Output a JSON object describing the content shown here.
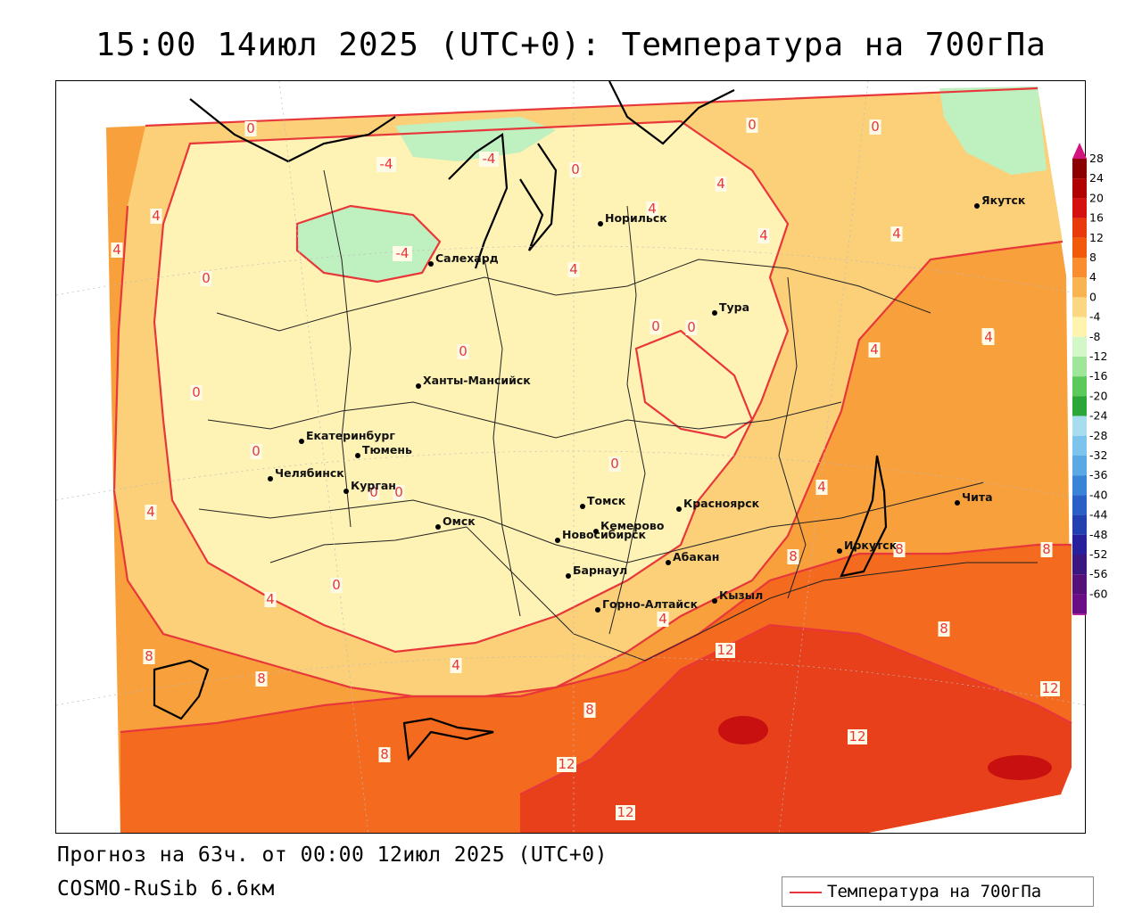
{
  "title": "15:00 14июл 2025 (UTC+0): Температура на 700гПа",
  "footer": {
    "forecast": "Прогноз на 63ч. от 00:00 12июл 2025 (UTC+0)",
    "model": "COSMO-RuSib 6.6км"
  },
  "legend": {
    "label": "Температура на 700гПа",
    "line_color": "#e8373a"
  },
  "colorbar": {
    "ticks": [
      "28",
      "24",
      "20",
      "16",
      "12",
      "8",
      "4",
      "0",
      "-4",
      "-8",
      "-12",
      "-16",
      "-20",
      "-24",
      "-28",
      "-32",
      "-36",
      "-40",
      "-44",
      "-48",
      "-52",
      "-56",
      "-60"
    ],
    "colors": [
      "#8b0000",
      "#b00000",
      "#d41010",
      "#e83a0a",
      "#f05a0a",
      "#f98d30",
      "#f8b450",
      "#fbd782",
      "#fff3b0",
      "#d4f7c8",
      "#9fe69a",
      "#5cc95c",
      "#2aa63a",
      "#a8dcef",
      "#7cc4ec",
      "#5aa8e4",
      "#3a84d8",
      "#2a5fc8",
      "#2340b0",
      "#281f9a",
      "#3a1680",
      "#55107a",
      "#6a0e86"
    ],
    "top_color": "#d4147e",
    "bottom_color": "#c31aa8"
  },
  "map": {
    "fills": {
      "very_warm": "#e8401a",
      "warm_12": "#f46a1e",
      "warm_8": "#f8a03c",
      "warm_4": "#fbd079",
      "mild_0": "#fff2b5",
      "cool": "#bff0c0",
      "hottest": "#c81010"
    },
    "isotherm_color": "#e8373a",
    "cities": [
      {
        "name": "Норильск"
      },
      {
        "name": "Якутск"
      },
      {
        "name": "Салехард"
      },
      {
        "name": "Тура"
      },
      {
        "name": "Ханты-Мансийск"
      },
      {
        "name": "Екатеринбург"
      },
      {
        "name": "Тюмень"
      },
      {
        "name": "Челябинск"
      },
      {
        "name": "Курган"
      },
      {
        "name": "Омск"
      },
      {
        "name": "Новосибирск"
      },
      {
        "name": "Томск"
      },
      {
        "name": "Кемерово"
      },
      {
        "name": "Красноярск"
      },
      {
        "name": "Барнаул"
      },
      {
        "name": "Абакан"
      },
      {
        "name": "Иркутск"
      },
      {
        "name": "Чита"
      },
      {
        "name": "Горно-Алтайск"
      },
      {
        "name": "Кызыл"
      }
    ],
    "isotherm_labels": [
      {
        "text": "0"
      },
      {
        "text": "0"
      },
      {
        "text": "-4"
      },
      {
        "text": "-4"
      },
      {
        "text": "0"
      },
      {
        "text": "0"
      },
      {
        "text": "4"
      },
      {
        "text": "4"
      },
      {
        "text": "4"
      },
      {
        "text": "4"
      },
      {
        "text": "4"
      },
      {
        "text": "-4"
      },
      {
        "text": "4"
      },
      {
        "text": "0"
      },
      {
        "text": "0"
      },
      {
        "text": "0"
      },
      {
        "text": "4"
      },
      {
        "text": "4"
      },
      {
        "text": "4"
      },
      {
        "text": "0"
      },
      {
        "text": "0"
      },
      {
        "text": "0"
      },
      {
        "text": "0"
      },
      {
        "text": "0"
      },
      {
        "text": "0"
      },
      {
        "text": "4"
      },
      {
        "text": "4"
      },
      {
        "text": "8"
      },
      {
        "text": "8"
      },
      {
        "text": "8"
      },
      {
        "text": "12"
      },
      {
        "text": "8"
      },
      {
        "text": "8"
      },
      {
        "text": "8"
      },
      {
        "text": "4"
      },
      {
        "text": "4"
      },
      {
        "text": "8"
      },
      {
        "text": "12"
      },
      {
        "text": "12"
      },
      {
        "text": "12"
      },
      {
        "text": "12"
      },
      {
        "text": "8"
      },
      {
        "text": "4"
      },
      {
        "text": "4"
      },
      {
        "text": "0"
      }
    ]
  }
}
